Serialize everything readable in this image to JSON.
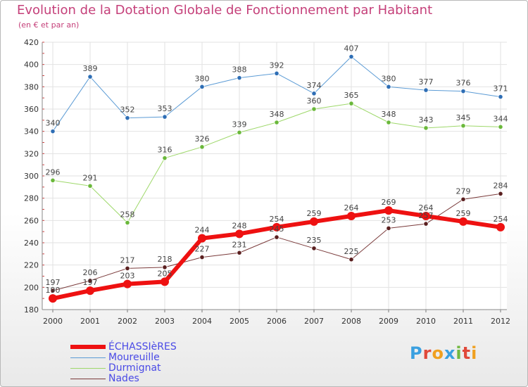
{
  "title": "Evolution de la Dotation Globale de Fonctionnement par Habitant",
  "subtitle": "(en € et par an)",
  "brand": {
    "text": "Proxiti",
    "colors": [
      "#3aa0e0",
      "#e0493a",
      "#f0a020",
      "#3aa0e0",
      "#70b840",
      "#e0493a",
      "#f0a020"
    ]
  },
  "chart_data": {
    "type": "line",
    "x": [
      "2000",
      "2001",
      "2002",
      "2003",
      "2004",
      "2005",
      "2006",
      "2007",
      "2008",
      "2009",
      "2010",
      "2011",
      "2012"
    ],
    "ylim": [
      180,
      420
    ],
    "yticks": [
      180,
      200,
      220,
      240,
      260,
      280,
      300,
      320,
      340,
      360,
      380,
      400,
      420
    ],
    "grid": true,
    "legend_position": "bottom-left",
    "series": [
      {
        "name": "Moureuille",
        "color": "#5b9bd5",
        "marker_color": "#2e6eb5",
        "line_width": 1,
        "values": [
          340,
          389,
          352,
          353,
          380,
          388,
          392,
          374,
          407,
          380,
          377,
          376,
          371
        ],
        "labels": [
          "340",
          "389",
          "352",
          "353",
          "380",
          "388",
          "392",
          "374",
          "407",
          "380",
          "377",
          "376",
          "371"
        ]
      },
      {
        "name": "Durmignat",
        "color": "#9ed86a",
        "marker_color": "#6ab83a",
        "line_width": 1,
        "values": [
          296,
          291,
          258,
          316,
          326,
          339,
          348,
          360,
          365,
          348,
          343,
          345,
          344
        ],
        "labels": [
          "296",
          "291",
          "258",
          "316",
          "326",
          "339",
          "348",
          "360",
          "365",
          "348",
          "343",
          "345",
          "344"
        ]
      },
      {
        "name": "Nades",
        "color": "#7a3a3a",
        "marker_color": "#5a1f1f",
        "line_width": 1,
        "values": [
          197,
          206,
          217,
          218,
          227,
          231,
          245,
          235,
          225,
          253,
          257,
          279,
          284
        ],
        "labels": [
          "197",
          "206",
          "217",
          "218",
          "227",
          "231",
          "245",
          "235",
          "225",
          "253",
          "257",
          "279",
          "284"
        ]
      },
      {
        "name": "ÉCHASSIèRES",
        "color": "#ee1111",
        "marker_color": "#ee1111",
        "line_width": 6,
        "values": [
          190,
          197,
          203,
          205,
          244,
          248,
          254,
          259,
          264,
          269,
          264,
          259,
          254
        ],
        "labels": [
          "190",
          "197",
          "203",
          "205",
          "244",
          "248",
          "254",
          "259",
          "264",
          "269",
          "264",
          "259",
          "254"
        ]
      }
    ],
    "legend": [
      {
        "name": "ÉCHASSIèRES",
        "color": "#ee1111",
        "thick": true
      },
      {
        "name": "Moureuille",
        "color": "#5b9bd5",
        "thick": false
      },
      {
        "name": "Durmignat",
        "color": "#9ed86a",
        "thick": false
      },
      {
        "name": "Nades",
        "color": "#7a3a3a",
        "thick": false
      }
    ]
  }
}
